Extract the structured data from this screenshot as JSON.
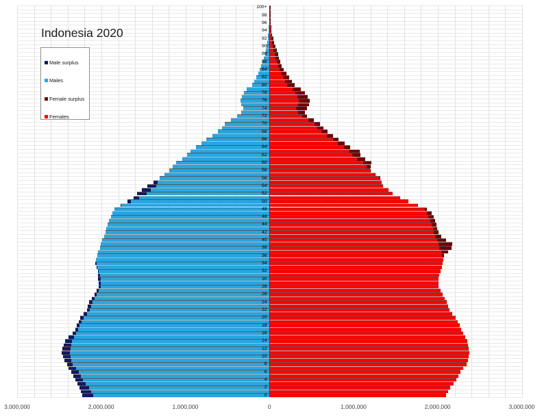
{
  "title": "Indonesia 2020",
  "legend": {
    "items": [
      {
        "label": "Male surplus",
        "color": "#141a5e"
      },
      {
        "label": "Males",
        "color": "#2aa5de"
      },
      {
        "label": "Female surplus",
        "color": "#6e0005"
      },
      {
        "label": "Females",
        "color": "#f90202"
      }
    ]
  },
  "x_axis": {
    "tick_labels": [
      "3,000,000",
      "2,000,000",
      "1,000,000",
      "0",
      "1,000,000",
      "2,000,000",
      "3,000,000"
    ],
    "major_unit": 1000000,
    "minor_unit": 200000,
    "max_each_side": 3000000
  },
  "y_axis": {
    "tick_labels": [
      "0",
      "2",
      "4",
      "6",
      "8",
      "10",
      "12",
      "14",
      "16",
      "18",
      "20",
      "22",
      "24",
      "26",
      "28",
      "30",
      "32",
      "34",
      "36",
      "38",
      "40",
      "42",
      "44",
      "46",
      "48",
      "50",
      "52",
      "54",
      "56",
      "58",
      "60",
      "62",
      "64",
      "66",
      "68",
      "70",
      "72",
      "74",
      "76",
      "78",
      "80",
      "82",
      "84",
      "86",
      "88",
      "90",
      "92",
      "94",
      "96",
      "98",
      "100+"
    ]
  },
  "colors": {
    "male": "#2aa5de",
    "male_surplus": "#141a5e",
    "female": "#f90202",
    "female_surplus": "#6e0005",
    "grid_v": "#e0e0e0",
    "grid_h": "#e9e9e9",
    "center_axis": "#3a3a3a"
  },
  "chart_data": {
    "type": "bar",
    "subtype": "population-pyramid",
    "title": "Indonesia 2020",
    "orientation": "horizontal",
    "age_min": 0,
    "age_max_label": "100+",
    "x_range_millions_each_side": 3,
    "grid": true,
    "legend_position": "upper-left",
    "unit": "persons (millions) per single year of age; males plotted left, females right; tip segment shows sex surplus",
    "series": [
      {
        "name": "Males",
        "side": "left",
        "values_millions": [
          2.23,
          2.245,
          2.26,
          2.285,
          2.31,
          2.335,
          2.36,
          2.395,
          2.41,
          2.44,
          2.46,
          2.47,
          2.465,
          2.45,
          2.43,
          2.39,
          2.34,
          2.31,
          2.29,
          2.27,
          2.25,
          2.21,
          2.175,
          2.16,
          2.145,
          2.115,
          2.08,
          2.055,
          2.03,
          2.03,
          2.04,
          2.04,
          2.045,
          2.06,
          2.07,
          2.065,
          2.05,
          2.04,
          2.02,
          2.005,
          1.99,
          1.97,
          1.95,
          1.94,
          1.93,
          1.91,
          1.89,
          1.87,
          1.845,
          1.77,
          1.69,
          1.62,
          1.58,
          1.52,
          1.455,
          1.38,
          1.31,
          1.25,
          1.19,
          1.15,
          1.115,
          1.04,
          0.98,
          0.94,
          0.88,
          0.81,
          0.75,
          0.68,
          0.615,
          0.57,
          0.535,
          0.46,
          0.385,
          0.335,
          0.31,
          0.34,
          0.35,
          0.33,
          0.305,
          0.27,
          0.21,
          0.18,
          0.155,
          0.135,
          0.12,
          0.1,
          0.084,
          0.07,
          0.057,
          0.047,
          0.038,
          0.03,
          0.024,
          0.018,
          0.014,
          0.011,
          0.008,
          0.006,
          0.004,
          0.003,
          0.002
        ]
      },
      {
        "name": "Females",
        "side": "right",
        "values_millions": [
          2.1,
          2.12,
          2.15,
          2.185,
          2.22,
          2.245,
          2.27,
          2.305,
          2.34,
          2.36,
          2.37,
          2.375,
          2.37,
          2.36,
          2.35,
          2.33,
          2.3,
          2.28,
          2.26,
          2.24,
          2.21,
          2.17,
          2.14,
          2.125,
          2.11,
          2.085,
          2.06,
          2.035,
          2.01,
          2.005,
          2.01,
          2.02,
          2.035,
          2.05,
          2.06,
          2.065,
          2.075,
          2.12,
          2.16,
          2.17,
          2.1,
          2.04,
          2.005,
          1.99,
          1.985,
          1.97,
          1.95,
          1.925,
          1.87,
          1.76,
          1.65,
          1.55,
          1.46,
          1.41,
          1.35,
          1.33,
          1.315,
          1.26,
          1.195,
          1.2,
          1.21,
          1.14,
          1.08,
          1.075,
          0.96,
          0.89,
          0.815,
          0.75,
          0.69,
          0.64,
          0.6,
          0.525,
          0.445,
          0.42,
          0.44,
          0.47,
          0.48,
          0.455,
          0.42,
          0.37,
          0.3,
          0.265,
          0.235,
          0.2,
          0.165,
          0.145,
          0.125,
          0.11,
          0.098,
          0.084,
          0.071,
          0.056,
          0.043,
          0.032,
          0.024,
          0.018,
          0.014,
          0.01,
          0.007,
          0.006,
          0.005
        ]
      }
    ]
  }
}
